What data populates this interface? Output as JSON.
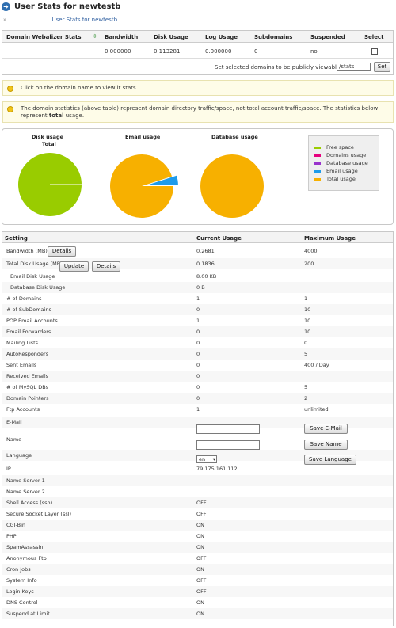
{
  "header": {
    "title": "User Stats for newtestb"
  },
  "breadcrumb": {
    "separator": "»",
    "link": "User Stats for newtestb"
  },
  "domain_table": {
    "columns": [
      "Domain Webalizer Stats",
      "Bandwidth",
      "Disk Usage",
      "Log Usage",
      "Subdomains",
      "Suspended",
      "Select"
    ],
    "sort_icon": "sort-arrows-icon",
    "row": {
      "domain": "",
      "bandwidth": "0.000000",
      "disk_usage": "0.113281",
      "log_usage": "0.000000",
      "subdomains": "0",
      "suspended": "no"
    },
    "footer_label": "Set selected domains to be publicly viewable from",
    "footer_input_value": "/stats",
    "set_button": "Set"
  },
  "notes": {
    "icon": "lightbulb-icon",
    "click_note": "Click on the domain name to view it stats.",
    "info_note_pre": "The domain statistics (above table) represent domain directory traffic/space, not total account traffic/space. The statistics below represent ",
    "info_note_bold": "total",
    "info_note_post": "usage."
  },
  "charts": {
    "chart_data": [
      {
        "type": "pie",
        "title": "Disk usage",
        "subtitle": "Total",
        "slices": [
          {
            "label": "Free space",
            "value": 99.9
          },
          {
            "label": "Total usage",
            "value": 0.1
          }
        ]
      },
      {
        "type": "pie",
        "title": "Email usage",
        "slices": [
          {
            "label": "Total usage",
            "value": 95
          },
          {
            "label": "Email usage",
            "value": 5
          }
        ]
      },
      {
        "type": "pie",
        "title": "Database usage",
        "slices": [
          {
            "label": "Total usage",
            "value": 100
          }
        ]
      }
    ],
    "colors": {
      "Free space": "#99cc00",
      "Domains usage": "#e6007e",
      "Database usage": "#9933cc",
      "Email usage": "#1e9bea",
      "Total usage": "#f7b000"
    },
    "legend": [
      {
        "label": "Free space",
        "color": "#99cc00"
      },
      {
        "label": "Domains usage",
        "color": "#e6007e"
      },
      {
        "label": "Database usage",
        "color": "#9933cc"
      },
      {
        "label": "Email usage",
        "color": "#1e9bea"
      },
      {
        "label": "Total usage",
        "color": "#f7b000"
      }
    ]
  },
  "settings": {
    "headers": {
      "setting": "Setting",
      "current": "Current Usage",
      "max": "Maximum Usage"
    },
    "details_button": "Details",
    "update_button": "Update",
    "save_email_button": "Save E-Mail",
    "save_name_button": "Save Name",
    "save_language_button": "Save Language",
    "language_value": "en",
    "rows": [
      {
        "label": "Bandwidth (MB)",
        "current": "0.2681",
        "max": "4000"
      },
      {
        "label": "Total Disk Usage (MB)",
        "current": "0.1836",
        "max": "200"
      },
      {
        "label": "Email Disk Usage",
        "current": "8.00 KB",
        "max": ""
      },
      {
        "label": "Database Disk Usage",
        "current": "0 B",
        "max": ""
      },
      {
        "label": "# of Domains",
        "current": "1",
        "max": "1"
      },
      {
        "label": "# of SubDomains",
        "current": "0",
        "max": "10"
      },
      {
        "label": "POP Email Accounts",
        "current": "1",
        "max": "10"
      },
      {
        "label": "Email Forwarders",
        "current": "0",
        "max": "10"
      },
      {
        "label": "Mailing Lists",
        "current": "0",
        "max": "0"
      },
      {
        "label": "AutoResponders",
        "current": "0",
        "max": "5"
      },
      {
        "label": "Sent Emails",
        "current": "0",
        "max": "400 / Day"
      },
      {
        "label": "Received Emails",
        "current": "0",
        "max": ""
      },
      {
        "label": "# of MySQL DBs",
        "current": "0",
        "max": "5"
      },
      {
        "label": "Domain Pointers",
        "current": "0",
        "max": "2"
      },
      {
        "label": "Ftp Accounts",
        "current": "1",
        "max": "unlimited"
      },
      {
        "label": "E-Mail",
        "current": "",
        "max": ""
      },
      {
        "label": "Name",
        "current": "",
        "max": ""
      },
      {
        "label": "Language",
        "current": "",
        "max": ""
      },
      {
        "label": "IP",
        "current": "79.175.161.112",
        "max": ""
      },
      {
        "label": "Name Server 1",
        "current": "",
        "max": ""
      },
      {
        "label": "Name Server 2",
        "current": ".",
        "max": ""
      },
      {
        "label": "Shell Access (ssh)",
        "current": "OFF",
        "max": ""
      },
      {
        "label": "Secure Socket Layer (ssl)",
        "current": "OFF",
        "max": ""
      },
      {
        "label": "CGI-Bin",
        "current": "ON",
        "max": ""
      },
      {
        "label": "PHP",
        "current": "ON",
        "max": ""
      },
      {
        "label": "SpamAssassin",
        "current": "ON",
        "max": ""
      },
      {
        "label": "Anonymous Ftp",
        "current": "OFF",
        "max": ""
      },
      {
        "label": "Cron Jobs",
        "current": "ON",
        "max": ""
      },
      {
        "label": "System Info",
        "current": "OFF",
        "max": ""
      },
      {
        "label": "Login Keys",
        "current": "OFF",
        "max": ""
      },
      {
        "label": "DNS Control",
        "current": "ON",
        "max": ""
      },
      {
        "label": "Suspend at Limit",
        "current": "ON",
        "max": ""
      }
    ]
  }
}
